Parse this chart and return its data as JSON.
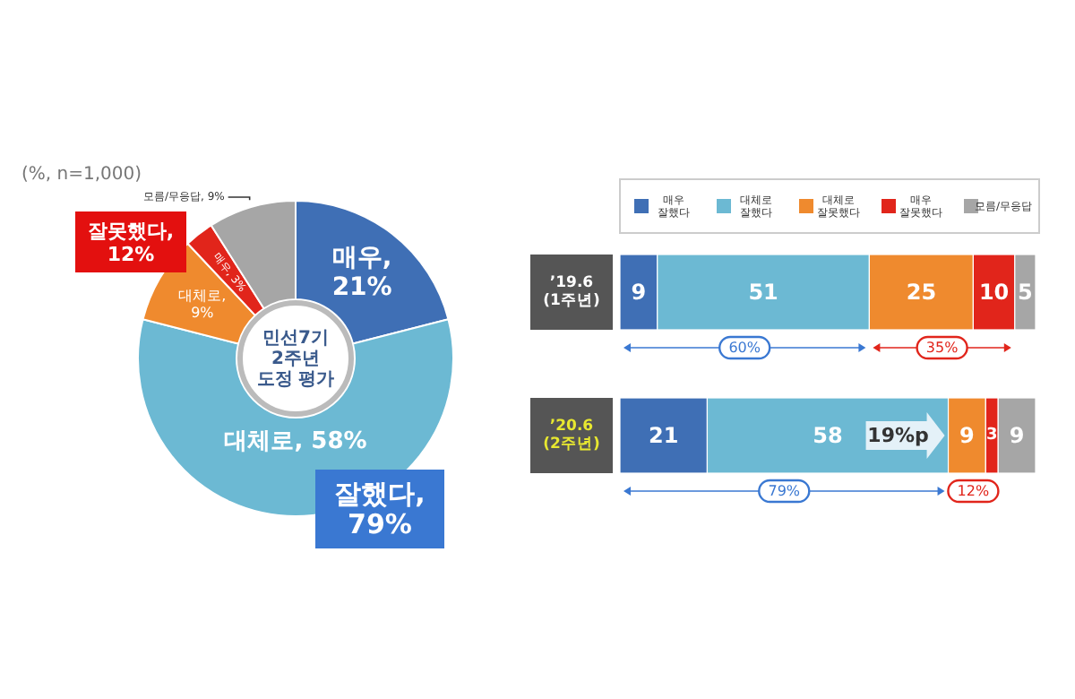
{
  "chart_data": [
    {
      "type": "donut",
      "title": "민선7기\n2주년\n도정 평가",
      "categories": [
        null,
        null,
        null,
        null,
        null
      ],
      "values": [
        21,
        58,
        9,
        3,
        9
      ],
      "value_labels": [
        "매우, 21%",
        "대체로, 58%",
        "대체로, 9%",
        "매우, 3%",
        "모름/무응답, 9%"
      ],
      "colors": [
        "#3f6fb5",
        "#6cb9d3",
        "#ef8a2e",
        "#e1251b",
        "#a6a6a6"
      ],
      "annotations": [
        "(%, n=1,000)",
        "잘했다,\n79%",
        "잘못했다,\n12%"
      ]
    },
    {
      "type": "bar",
      "orientation": "horizontal",
      "stacked": true,
      "data_labels": true,
      "legend": "top",
      "tick_labels": "y",
      "xlim": [
        0,
        100
      ],
      "categories": [
        "’19.6\n(1주년)",
        "’20.6\n(2주년)"
      ],
      "series": [
        {
          "name": "매우 잘했다",
          "color": "#3f6fb5",
          "values": [
            9,
            21
          ]
        },
        {
          "name": "대체로 잘했다",
          "color": "#6cb9d3",
          "values": [
            51,
            58
          ]
        },
        {
          "name": "대체로 잘못했다",
          "color": "#ef8a2e",
          "values": [
            25,
            9
          ]
        },
        {
          "name": "매우 잘못했다",
          "color": "#e1251b",
          "values": [
            10,
            3
          ]
        },
        {
          "name": "모름/무응답",
          "color": "#a6a6a6",
          "values": [
            5,
            9
          ]
        }
      ],
      "annotations": [
        "60%",
        "35%",
        "79%",
        "12%",
        "19%p"
      ]
    }
  ]
}
